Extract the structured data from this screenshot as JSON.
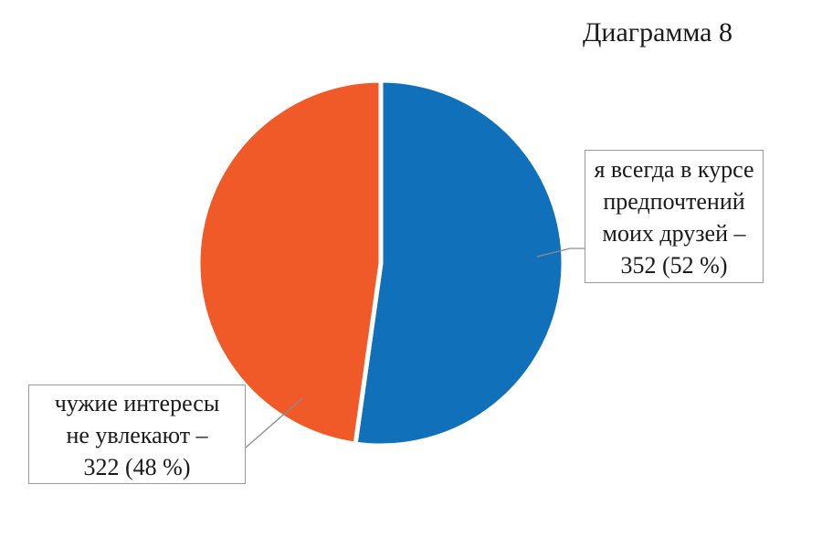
{
  "chart_data": {
    "type": "pie",
    "title": "Диаграмма 8",
    "slices": [
      {
        "label_lines": [
          "я всегда в курсе",
          "предпочтений",
          "моих друзей –",
          "352 (52 %)"
        ],
        "value": 352,
        "percent": 52,
        "color": "#1070B9"
      },
      {
        "label_lines": [
          "чужие интересы",
          "не увлекают –",
          "322 (48 %)"
        ],
        "value": 322,
        "percent": 48,
        "color": "#F05A28"
      }
    ],
    "start_angle": "12 o'clock",
    "direction": "clockwise",
    "legend": "none",
    "slice_separator_color": "#ffffff"
  }
}
